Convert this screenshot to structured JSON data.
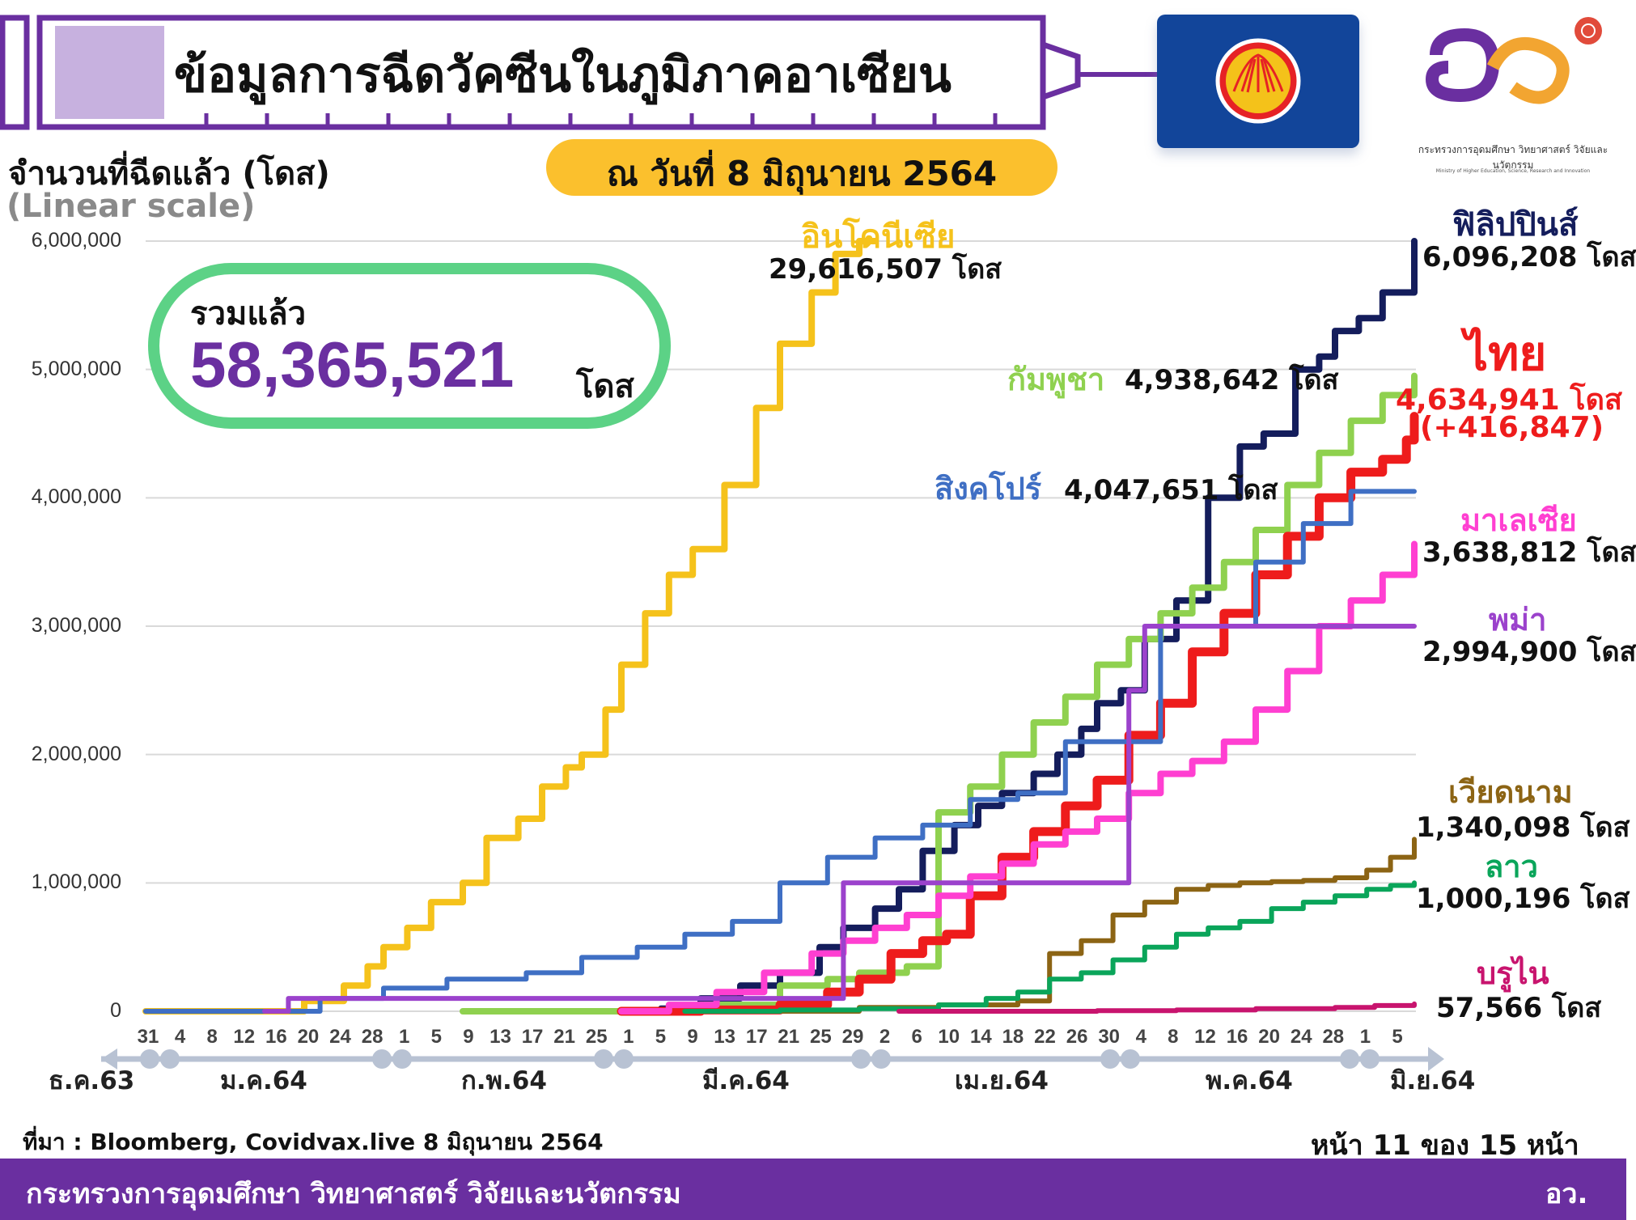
{
  "header": {
    "title": "ข้อมูลการฉีดวัคซีนในภูมิภาคอาเซียน",
    "date": "ณ วันที่ 8 มิถุนายน 2564"
  },
  "logo": {
    "org_th": "กระทรวงการอุดมศึกษา วิทยาศาสตร์ วิจัยและนวัตกรรม",
    "org_en": "Ministry of Higher Education, Science, Research and Innovation"
  },
  "total": {
    "label": "รวมแล้ว",
    "value": "58,365,521",
    "unit": "โดส"
  },
  "footer": {
    "source": "ที่มา : Bloomberg, Covidvax.live 8 มิถุนายน 2564",
    "page": "หน้า 11 ของ 15 หน้า",
    "ministry": "กระทรวงการอุดมศึกษา วิทยาศาสตร์ วิจัยและนวัตกรรม",
    "abbr": "อว."
  },
  "chart_data": {
    "type": "line",
    "ylabel": "จำนวนที่ฉีดแล้ว (โดส)",
    "yscale_note": "(Linear scale)",
    "ylim": [
      0,
      6000000
    ],
    "y_ticks": [
      "0",
      "1,000,000",
      "2,000,000",
      "3,000,000",
      "4,000,000",
      "5,000,000",
      "6,000,000"
    ],
    "x_ticks": [
      "31",
      "4",
      "8",
      "12",
      "16",
      "20",
      "24",
      "28",
      "1",
      "5",
      "9",
      "13",
      "17",
      "21",
      "25",
      "1",
      "5",
      "9",
      "13",
      "17",
      "21",
      "25",
      "29",
      "2",
      "6",
      "10",
      "14",
      "18",
      "22",
      "26",
      "30",
      "4",
      "8",
      "12",
      "16",
      "20",
      "24",
      "28",
      "1",
      "5"
    ],
    "months": [
      "ธ.ค.63",
      "ม.ค.64",
      "ก.พ.64",
      "มี.ค.64",
      "เม.ย.64",
      "พ.ค.64",
      "มิ.ย.64"
    ],
    "x_range_days": [
      0,
      160
    ],
    "series": [
      {
        "name": "อินโดนีเซีย",
        "total": "29,616,507 โดส",
        "color": "#f5c21b",
        "width": 8,
        "x": [
          0,
          14,
          20,
          25,
          28,
          30,
          33,
          36,
          40,
          43,
          47,
          50,
          53,
          55,
          58,
          60,
          63,
          66,
          69,
          73,
          77,
          80,
          84,
          87,
          90,
          92
        ],
        "y": [
          0,
          0,
          80000,
          200000,
          350000,
          500000,
          650000,
          850000,
          1000000,
          1350000,
          1500000,
          1750000,
          1900000,
          2000000,
          2350000,
          2700000,
          3100000,
          3400000,
          3600000,
          4100000,
          4700000,
          5200000,
          5600000,
          5900000,
          6000000,
          6000000
        ]
      },
      {
        "name": "ฟิลิปปินส์",
        "total": "6,096,208 โดส",
        "color": "#141d5c",
        "width": 8,
        "x": [
          60,
          65,
          70,
          75,
          80,
          85,
          88,
          92,
          95,
          98,
          102,
          105,
          108,
          112,
          115,
          118,
          120,
          123,
          126,
          130,
          134,
          138,
          141,
          145,
          148,
          150,
          153,
          156,
          160
        ],
        "y": [
          0,
          20000,
          100000,
          200000,
          300000,
          500000,
          650000,
          800000,
          950000,
          1250000,
          1450000,
          1600000,
          1700000,
          1850000,
          2000000,
          2200000,
          2400000,
          2500000,
          2900000,
          3200000,
          4000000,
          4400000,
          4500000,
          5000000,
          5100000,
          5300000,
          5400000,
          5600000,
          6000000
        ]
      },
      {
        "name": "กัมพูชา",
        "total": "4,938,642 โดส",
        "color": "#8fd14f",
        "width": 8,
        "x": [
          40,
          55,
          70,
          80,
          86,
          90,
          96,
          100,
          104,
          108,
          112,
          116,
          120,
          124,
          128,
          132,
          136,
          140,
          144,
          148,
          152,
          156,
          160
        ],
        "y": [
          0,
          0,
          50000,
          200000,
          250000,
          300000,
          350000,
          1550000,
          1750000,
          2000000,
          2250000,
          2450000,
          2700000,
          2900000,
          3100000,
          3300000,
          3500000,
          3750000,
          4100000,
          4350000,
          4600000,
          4800000,
          4950000
        ]
      },
      {
        "name": "ไทย",
        "total": "4,634,941 โดส",
        "increase": "(+416,847)",
        "color": "#ee1c1c",
        "width": 11,
        "x": [
          60,
          70,
          80,
          86,
          90,
          94,
          98,
          101,
          104,
          108,
          112,
          116,
          120,
          124,
          128,
          132,
          136,
          140,
          144,
          148,
          152,
          156,
          159,
          160
        ],
        "y": [
          0,
          10000,
          50000,
          150000,
          250000,
          450000,
          550000,
          600000,
          900000,
          1200000,
          1400000,
          1600000,
          1800000,
          2150000,
          2400000,
          2800000,
          3100000,
          3400000,
          3700000,
          4000000,
          4200000,
          4300000,
          4450000,
          4634941
        ]
      },
      {
        "name": "สิงคโปร์",
        "total": "4,047,651 โดส",
        "color": "#3f6fc4",
        "width": 6,
        "x": [
          0,
          15,
          22,
          30,
          38,
          48,
          55,
          62,
          68,
          74,
          80,
          86,
          92,
          98,
          104,
          110,
          116,
          122,
          128,
          134,
          140,
          146,
          152,
          160
        ],
        "y": [
          0,
          0,
          100000,
          180000,
          250000,
          300000,
          420000,
          500000,
          600000,
          700000,
          1000000,
          1200000,
          1350000,
          1450000,
          1650000,
          1700000,
          2100000,
          2100000,
          3000000,
          3000000,
          3500000,
          3800000,
          4050000,
          4050000
        ]
      },
      {
        "name": "มาเลเซีย",
        "total": "3,638,812 โดส",
        "color": "#ff3fd1",
        "width": 8,
        "x": [
          60,
          66,
          72,
          78,
          84,
          88,
          92,
          96,
          100,
          104,
          108,
          112,
          116,
          120,
          124,
          128,
          132,
          136,
          140,
          144,
          148,
          152,
          156,
          160
        ],
        "y": [
          0,
          50000,
          150000,
          300000,
          450000,
          550000,
          650000,
          750000,
          900000,
          1050000,
          1150000,
          1300000,
          1400000,
          1500000,
          1700000,
          1850000,
          1950000,
          2100000,
          2350000,
          2650000,
          3000000,
          3200000,
          3400000,
          3640000
        ]
      },
      {
        "name": "พม่า",
        "total": "2,994,900 โดส",
        "color": "#9b42cc",
        "width": 6,
        "x": [
          15,
          18,
          30,
          40,
          55,
          65,
          75,
          85,
          88,
          100,
          110,
          120,
          124,
          126,
          130,
          160
        ],
        "y": [
          0,
          100000,
          100000,
          100000,
          100000,
          100000,
          100000,
          100000,
          1000000,
          1000000,
          1000000,
          1000000,
          2500000,
          3000000,
          3000000,
          3000000
        ]
      },
      {
        "name": "เวียดนาม",
        "total": "1,340,098 โดส",
        "color": "#8c6414",
        "width": 6,
        "x": [
          68,
          80,
          90,
          100,
          110,
          114,
          118,
          122,
          126,
          130,
          134,
          138,
          142,
          146,
          150,
          154,
          157,
          160
        ],
        "y": [
          0,
          0,
          30000,
          50000,
          80000,
          450000,
          550000,
          750000,
          850000,
          950000,
          980000,
          1000000,
          1010000,
          1020000,
          1040000,
          1100000,
          1200000,
          1340000
        ]
      },
      {
        "name": "ลาว",
        "total": "1,000,196 โดส",
        "color": "#0aa55a",
        "width": 6,
        "x": [
          68,
          80,
          90,
          100,
          106,
          110,
          114,
          118,
          122,
          126,
          130,
          134,
          138,
          142,
          146,
          150,
          154,
          157,
          160
        ],
        "y": [
          0,
          10000,
          20000,
          50000,
          100000,
          150000,
          250000,
          300000,
          400000,
          500000,
          600000,
          650000,
          700000,
          800000,
          850000,
          900000,
          950000,
          980000,
          1000000
        ]
      },
      {
        "name": "บรูไน",
        "total": "57,566 โดส",
        "color": "#c8146e",
        "width": 6,
        "x": [
          95,
          110,
          120,
          130,
          140,
          150,
          155,
          160
        ],
        "y": [
          0,
          0,
          5000,
          10000,
          20000,
          30000,
          45000,
          57566
        ]
      }
    ]
  }
}
